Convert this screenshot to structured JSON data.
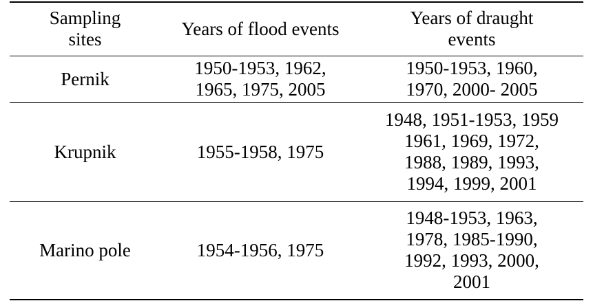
{
  "table": {
    "headers": {
      "col1": [
        "Sampling",
        "sites"
      ],
      "col2": [
        "Years of flood events"
      ],
      "col3": [
        "Years of draught",
        "events"
      ]
    },
    "rows": [
      {
        "site": "Pernik",
        "flood_lines": [
          "1950-1953, 1962,",
          "1965, 1975, 2005"
        ],
        "draught_lines": [
          "1950-1953, 1960,",
          "1970, 2000- 2005"
        ]
      },
      {
        "site": "Krupnik",
        "flood_lines": [
          "1955-1958, 1975"
        ],
        "draught_lines": [
          "1948, 1951-1953, 1959",
          "1961, 1969, 1972,",
          "1988, 1989, 1993,",
          "1994, 1999, 2001"
        ]
      },
      {
        "site": "Marino pole",
        "flood_lines": [
          "1954-1956, 1975"
        ],
        "draught_lines": [
          "1948-1953, 1963,",
          "1978, 1985-1990,",
          "1992, 1993, 2000,",
          "2001"
        ]
      }
    ]
  }
}
